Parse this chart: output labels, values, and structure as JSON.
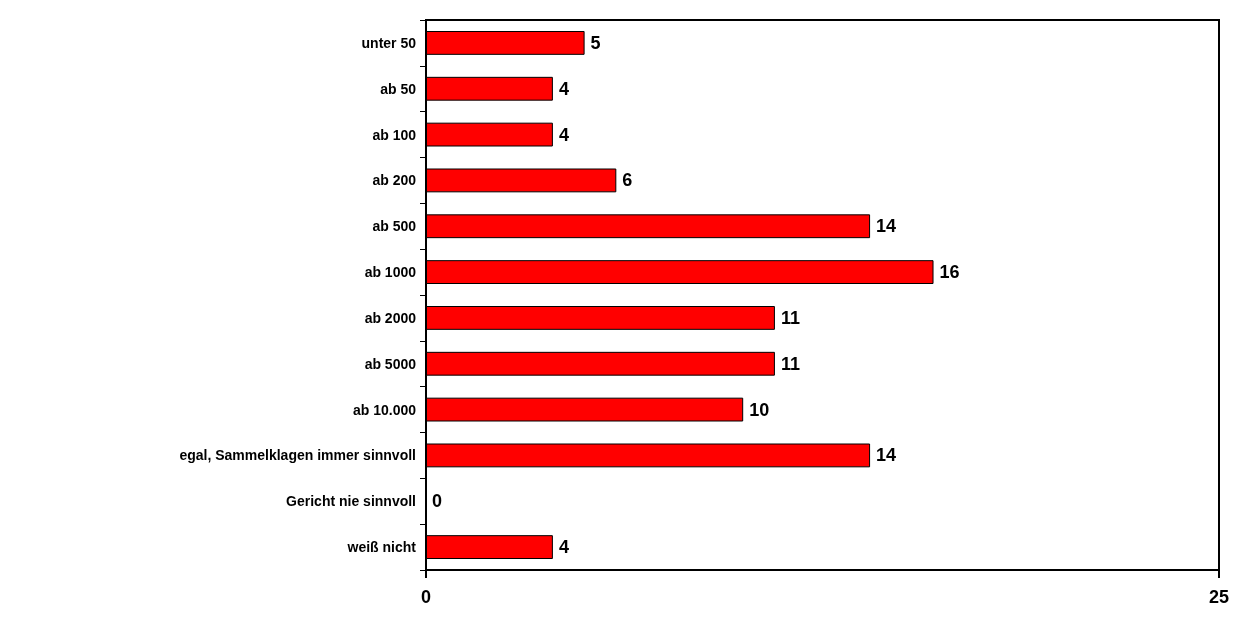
{
  "chart_data": {
    "type": "bar",
    "orientation": "horizontal",
    "categories": [
      "unter 50",
      "ab 50",
      "ab 100",
      "ab 200",
      "ab 500",
      "ab 1000",
      "ab 2000",
      "ab 5000",
      "ab 10.000",
      "egal, Sammelklagen immer sinnvoll",
      "Gericht nie sinnvoll",
      "weiß nicht"
    ],
    "values": [
      5,
      4,
      4,
      6,
      14,
      16,
      11,
      11,
      10,
      14,
      0,
      4
    ],
    "color": "#ff0000",
    "xlim": [
      0,
      25
    ],
    "xticks": [
      0,
      25
    ],
    "data_labels": true,
    "grid": false
  }
}
